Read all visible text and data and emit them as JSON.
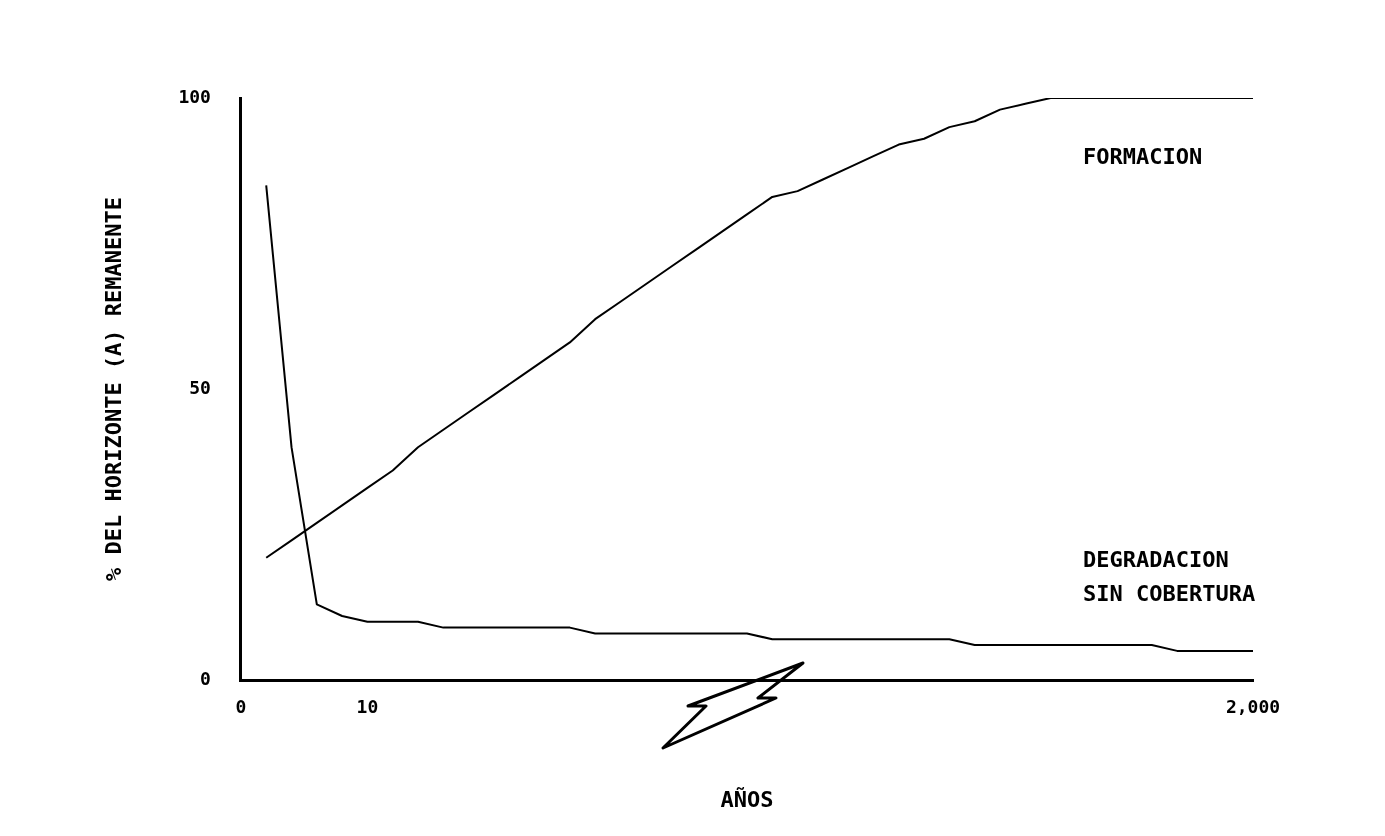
{
  "chart_data": {
    "type": "line",
    "xlabel": "AÑOS",
    "ylabel": "% DEL HORIZONTE (A) REMANENTE",
    "categories": [
      "0",
      null,
      null,
      null,
      null,
      "10",
      null,
      null,
      null,
      null,
      null,
      null,
      null,
      null,
      null,
      null,
      null,
      null,
      null,
      null,
      null,
      null,
      null,
      null,
      null,
      null,
      null,
      null,
      null,
      null,
      null,
      null,
      null,
      null,
      null,
      null,
      null,
      null,
      null,
      null,
      "2,000"
    ],
    "series": [
      {
        "name": "FORMACION",
        "color": "#000000",
        "values": [
          null,
          21,
          24,
          27,
          30,
          33,
          36,
          40,
          43,
          46,
          49,
          52,
          55,
          58,
          62,
          65,
          68,
          71,
          74,
          77,
          80,
          83,
          84,
          86,
          88,
          90,
          92,
          93,
          95,
          96,
          98,
          99,
          100,
          100,
          100,
          100,
          100,
          100,
          100,
          100,
          100
        ]
      },
      {
        "name": "DEGRADACION SIN COBERTURA",
        "color": "#000000",
        "values": [
          null,
          85,
          40,
          13,
          11,
          10,
          10,
          10,
          9,
          9,
          9,
          9,
          9,
          9,
          8,
          8,
          8,
          8,
          8,
          8,
          8,
          7,
          7,
          7,
          7,
          7,
          7,
          7,
          7,
          6,
          6,
          6,
          6,
          6,
          6,
          6,
          6,
          5,
          5,
          5,
          5
        ]
      }
    ],
    "ylim": [
      0,
      100
    ],
    "yticks": [
      0,
      50,
      100
    ],
    "grid": false,
    "legend": false,
    "marker": "none",
    "line_style": "solid"
  }
}
